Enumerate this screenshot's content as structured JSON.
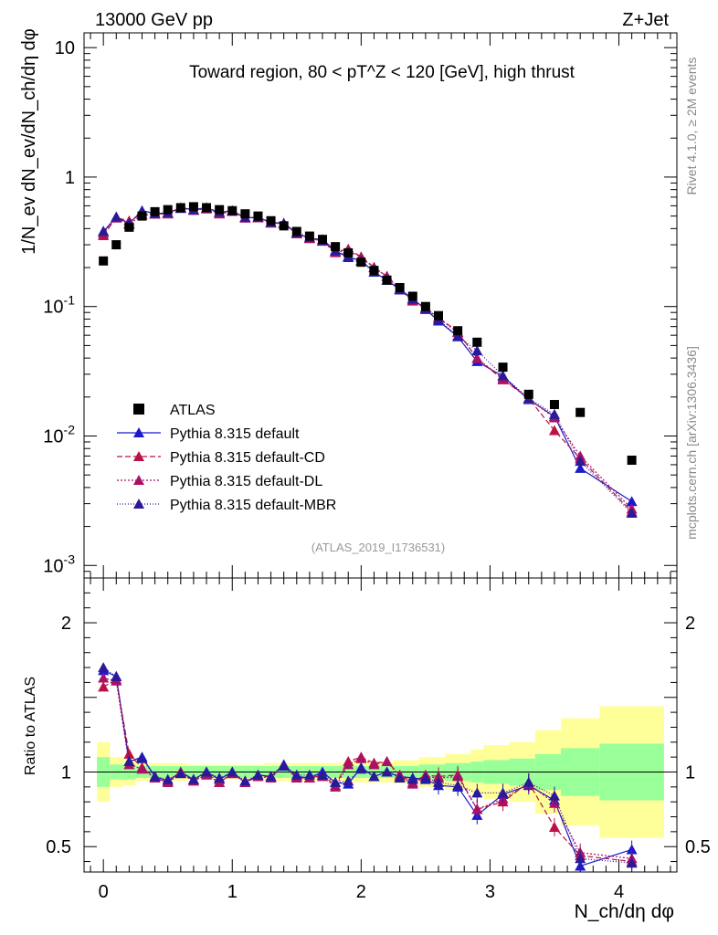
{
  "header": {
    "energy_label": "13000 GeV pp",
    "process_label": "Z+Jet",
    "side_rivet": "Rivet 4.1.0, ≥ 2M events",
    "side_mcplots": "mcplots.cern.ch [arXiv:1306.3436]"
  },
  "chart_data": {
    "type": "scatter",
    "title": "Toward region, 80 < pT^Z < 120 [GeV], high thrust",
    "analysis_label": "(ATLAS_2019_I1736531)",
    "xlabel": "N_ch/dη dφ",
    "ylabel": "1/N_ev dN_ev/dN_ch/dη dφ",
    "ratio_ylabel": "Ratio to ATLAS",
    "x_axis": {
      "range": [
        -0.15,
        4.45
      ],
      "ticks": [
        "0",
        "1",
        "2",
        "3",
        "4"
      ]
    },
    "main_y_axis": {
      "scale": "log",
      "range": [
        0.0008,
        13
      ],
      "ticks": [
        "10^-3",
        "10^-2",
        "10^-1",
        "1",
        "10"
      ]
    },
    "ratio_y_axis": {
      "range": [
        0.33,
        2.3
      ],
      "ticks": [
        "0.5",
        "1",
        "2"
      ]
    },
    "x": [
      0,
      0.1,
      0.2,
      0.3,
      0.4,
      0.5,
      0.6,
      0.7,
      0.8,
      0.9,
      1.0,
      1.1,
      1.2,
      1.3,
      1.4,
      1.5,
      1.6,
      1.7,
      1.8,
      1.9,
      2.0,
      2.1,
      2.2,
      2.3,
      2.4,
      2.5,
      2.6,
      2.75,
      2.9,
      3.1,
      3.3,
      3.5,
      3.7,
      4.1
    ],
    "series": [
      {
        "name": "ATLAS",
        "color": "#000000",
        "marker": "square",
        "values": [
          0.225,
          0.3,
          0.41,
          0.5,
          0.54,
          0.56,
          0.58,
          0.59,
          0.58,
          0.56,
          0.55,
          0.52,
          0.5,
          0.46,
          0.42,
          0.38,
          0.35,
          0.33,
          0.29,
          0.26,
          0.22,
          0.19,
          0.16,
          0.14,
          0.12,
          0.1,
          0.085,
          0.065,
          0.053,
          0.034,
          0.021,
          0.0175,
          0.0152,
          0.0065
        ]
      },
      {
        "name": "Pythia 8.315 default",
        "color": "#1a1acc",
        "marker": "triangle",
        "dash": "",
        "ratio": [
          1.68,
          1.64,
          1.07,
          1.1,
          0.97,
          0.94,
          1.0,
          0.95,
          1.0,
          0.95,
          1.0,
          0.93,
          0.98,
          0.97,
          1.05,
          0.97,
          0.96,
          1.0,
          0.93,
          0.92,
          1.03,
          0.97,
          1.0,
          0.97,
          0.96,
          0.95,
          0.91,
          0.9,
          0.71,
          0.85,
          0.91,
          0.81,
          0.37,
          0.48
        ]
      },
      {
        "name": "Pythia 8.315 default-CD",
        "color": "#bb1144",
        "marker": "triangle",
        "dash": "6,3",
        "ratio": [
          1.57,
          1.62,
          1.12,
          1.03,
          0.96,
          0.93,
          1.0,
          0.94,
          0.99,
          0.93,
          0.99,
          0.93,
          0.97,
          0.97,
          1.04,
          0.96,
          0.96,
          0.98,
          0.91,
          1.07,
          1.1,
          1.06,
          1.07,
          0.98,
          0.93,
          0.98,
          0.97,
          0.98,
          0.75,
          0.8,
          0.93,
          0.63,
          0.44,
          0.4
        ]
      },
      {
        "name": "Pythia 8.315 default-DL",
        "color": "#aa1166",
        "marker": "triangle",
        "dash": "2,2",
        "ratio": [
          1.63,
          1.61,
          1.05,
          1.02,
          0.96,
          0.93,
          0.99,
          0.94,
          0.98,
          0.93,
          0.99,
          0.93,
          0.97,
          0.96,
          1.04,
          0.96,
          0.96,
          0.97,
          0.9,
          1.05,
          1.09,
          1.05,
          1.07,
          0.97,
          0.92,
          0.97,
          0.96,
          0.97,
          0.75,
          0.82,
          0.92,
          0.79,
          0.46,
          0.42
        ]
      },
      {
        "name": "Pythia 8.315 default-MBR",
        "color": "#2a1a99",
        "marker": "triangle",
        "dash": "1,2",
        "ratio": [
          1.7,
          1.64,
          1.07,
          1.09,
          0.97,
          0.95,
          0.99,
          0.95,
          1.0,
          0.96,
          1.0,
          0.94,
          0.98,
          0.97,
          1.04,
          0.98,
          0.98,
          0.98,
          0.93,
          0.94,
          1.02,
          0.97,
          1.0,
          0.96,
          0.95,
          0.96,
          0.93,
          0.91,
          0.86,
          0.86,
          0.93,
          0.84,
          0.42,
          0.39
        ]
      }
    ],
    "uncertainty_bands": {
      "bin_edges": [
        -0.05,
        0.05,
        0.15,
        0.25,
        0.35,
        0.45,
        0.55,
        0.65,
        0.75,
        0.85,
        0.95,
        1.05,
        1.15,
        1.25,
        1.35,
        1.45,
        1.55,
        1.65,
        1.75,
        1.85,
        1.95,
        2.05,
        2.15,
        2.25,
        2.35,
        2.45,
        2.55,
        2.65,
        2.85,
        2.95,
        3.15,
        3.35,
        3.55,
        3.85,
        4.35
      ],
      "inner_half_width": [
        0.1,
        0.05,
        0.05,
        0.04,
        0.04,
        0.04,
        0.04,
        0.04,
        0.04,
        0.04,
        0.04,
        0.04,
        0.04,
        0.04,
        0.04,
        0.04,
        0.04,
        0.04,
        0.04,
        0.04,
        0.04,
        0.04,
        0.04,
        0.04,
        0.04,
        0.05,
        0.05,
        0.06,
        0.07,
        0.08,
        0.09,
        0.12,
        0.16,
        0.19
      ],
      "outer_half_width": [
        0.2,
        0.1,
        0.09,
        0.06,
        0.06,
        0.06,
        0.06,
        0.05,
        0.05,
        0.05,
        0.05,
        0.05,
        0.05,
        0.06,
        0.06,
        0.06,
        0.06,
        0.06,
        0.06,
        0.07,
        0.07,
        0.07,
        0.07,
        0.08,
        0.08,
        0.1,
        0.1,
        0.12,
        0.15,
        0.18,
        0.2,
        0.28,
        0.36,
        0.44
      ],
      "inner_color": "#99ff99",
      "outer_color": "#ffff99"
    }
  }
}
